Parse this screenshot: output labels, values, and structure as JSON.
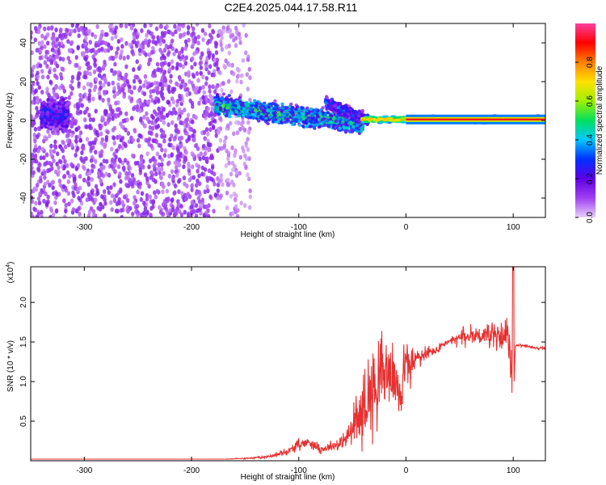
{
  "figure": {
    "title": "C2E4.2025.044.17.58.R11"
  },
  "chart_data": [
    {
      "type": "heatmap",
      "xlabel": "Height of straight line (km)",
      "ylabel": "Frequency (Hz)",
      "xlim": [
        -350,
        130
      ],
      "ylim": [
        -50,
        50
      ],
      "xticks": [
        -300,
        -200,
        -100,
        0,
        100
      ],
      "yticks": [
        -40,
        -20,
        0,
        20,
        40
      ],
      "grid": false,
      "colorbar": {
        "label": "Normalized spectral amplitude",
        "range": [
          0,
          1
        ],
        "ticks": [
          0.0,
          0.2,
          0.4,
          0.6,
          0.8
        ],
        "colors": [
          "#e8d0f8",
          "#a040f0",
          "#6000e8",
          "#0030ff",
          "#00c8ff",
          "#00e060",
          "#a0f000",
          "#ffe000",
          "#ff8000",
          "#ff0000",
          "#ff40a0"
        ]
      },
      "regions": [
        {
          "x": [
            -350,
            -175
          ],
          "center_y": 0,
          "spread_y": 50,
          "amplitude": 0.12,
          "density": "high"
        },
        {
          "x": [
            -175,
            -145
          ],
          "center_y": 0,
          "spread_y": 50,
          "amplitude": 0.06,
          "density": "low"
        },
        {
          "x": [
            -340,
            -315
          ],
          "center_y": 3,
          "spread_y": 8,
          "amplitude": 0.25,
          "density": "high"
        },
        {
          "x": [
            -178,
            -40
          ],
          "center_y_start": 8,
          "center_y_end": -2,
          "spread_y": 6,
          "amplitude": 0.45,
          "density": "high"
        },
        {
          "x": [
            -75,
            -35
          ],
          "center_y_start": 9,
          "center_y_end": 0,
          "spread_y": 4,
          "amplitude": 0.3,
          "density": "medium"
        },
        {
          "x": [
            -40,
            130
          ],
          "center_y": 0.5,
          "spread_y": 2,
          "amplitude": 0.85,
          "density": "line"
        }
      ]
    },
    {
      "type": "line",
      "xlabel": "Height of straight line (km)",
      "ylabel": "SNR (10 * v/v)",
      "y_multiplier": "(x10^4)",
      "xlim": [
        -350,
        130
      ],
      "ylim": [
        0,
        2.45
      ],
      "xticks": [
        -300,
        -200,
        -100,
        0,
        100
      ],
      "yticks": [
        0.5,
        1.0,
        1.5,
        2.0
      ],
      "grid": false,
      "series": [
        {
          "color": "#e83030",
          "x": [
            -350,
            -300,
            -250,
            -200,
            -170,
            -150,
            -130,
            -120,
            -110,
            -100,
            -90,
            -80,
            -70,
            -60,
            -55,
            -50,
            -45,
            -40,
            -35,
            -30,
            -25,
            -20,
            -15,
            -10,
            -5,
            0,
            5,
            10,
            15,
            20,
            25,
            30,
            35,
            40,
            45,
            50,
            55,
            60,
            65,
            70,
            75,
            80,
            85,
            90,
            95,
            98,
            100,
            102,
            105,
            110,
            115,
            120,
            125,
            130
          ],
          "y": [
            0.02,
            0.02,
            0.02,
            0.02,
            0.02,
            0.03,
            0.05,
            0.08,
            0.12,
            0.2,
            0.24,
            0.14,
            0.18,
            0.22,
            0.3,
            0.4,
            0.52,
            0.65,
            0.82,
            0.95,
            1.05,
            1.08,
            1.15,
            0.95,
            0.9,
            1.25,
            1.18,
            1.3,
            1.32,
            1.35,
            1.38,
            1.4,
            1.48,
            1.5,
            1.52,
            1.55,
            1.56,
            1.58,
            1.6,
            1.58,
            1.6,
            1.55,
            1.58,
            1.55,
            1.6,
            1.1,
            0.95,
            1.45,
            1.46,
            1.45,
            1.44,
            1.43,
            1.42,
            1.42
          ],
          "noise": [
            0,
            0,
            0,
            0,
            0,
            0.01,
            0.02,
            0.04,
            0.05,
            0.08,
            0.1,
            0.06,
            0.08,
            0.12,
            0.2,
            0.3,
            0.4,
            0.55,
            0.6,
            0.75,
            0.65,
            0.6,
            0.5,
            0.5,
            0.45,
            0.35,
            0.3,
            0.2,
            0.15,
            0.12,
            0.1,
            0.08,
            0.07,
            0.06,
            0.1,
            0.12,
            0.15,
            0.15,
            0.18,
            0.18,
            0.2,
            0.2,
            0.2,
            0.18,
            0.25,
            0.5,
            0.6,
            0.02,
            0.02,
            0.02,
            0.02,
            0.02,
            0.02,
            0.02
          ]
        }
      ]
    }
  ]
}
